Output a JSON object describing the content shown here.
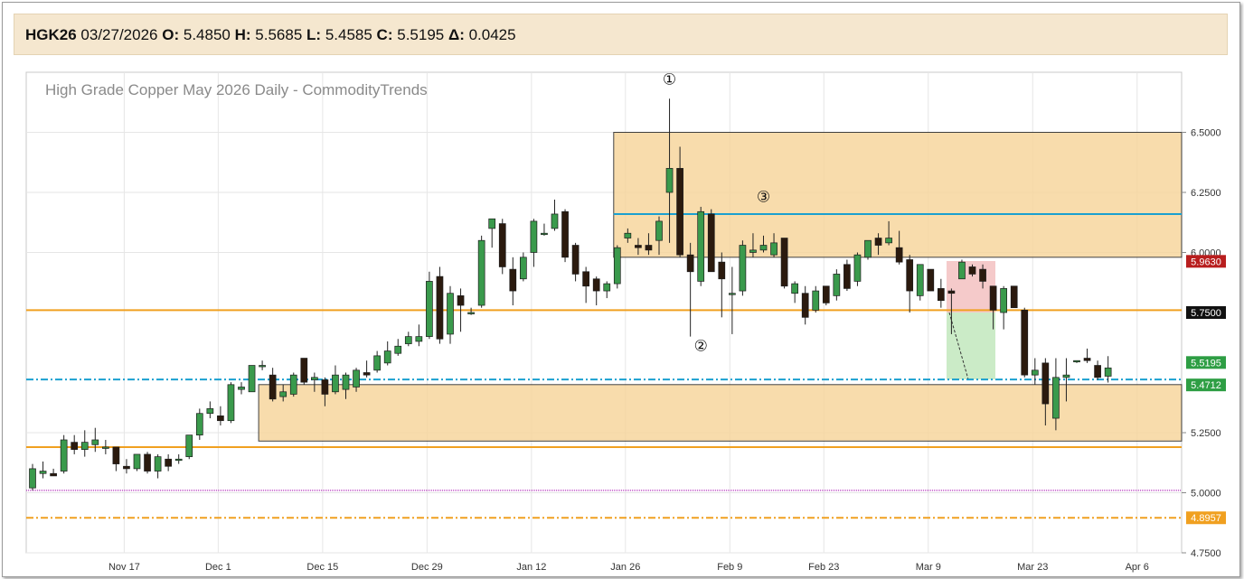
{
  "header": {
    "symbol": "HGK26",
    "date": "03/27/2026",
    "open_label": "O:",
    "open": "5.4850",
    "high_label": "H:",
    "high": "5.5685",
    "low_label": "L:",
    "low": "5.4585",
    "close_label": "C:",
    "close": "5.5195",
    "change_label": "Δ:",
    "change": "0.0425"
  },
  "chart_data": {
    "type": "candlestick",
    "title": "High Grade Copper May 2026 Daily - CommodityTrends",
    "ylim": [
      4.7,
      6.75
    ],
    "y_ticks": [
      "6.5000",
      "6.2500",
      "6.0000",
      "5.2500",
      "5.0000",
      "4.7500"
    ],
    "x_tick_labels": [
      "Nov 17",
      "Dec 1",
      "Dec 15",
      "Dec 29",
      "Jan 12",
      "Jan 26",
      "Feb 9",
      "Feb 23",
      "Mar 9",
      "Mar 23",
      "Apr 6"
    ],
    "grid": true,
    "colors": {
      "up": "#3a9a4c",
      "down": "#2b1a0e",
      "zone": "#f7d69e",
      "level": "#f0a020",
      "cyan": "#1aa0d0",
      "price_up": "#2e9e44"
    },
    "candles": [
      {
        "o": 5.02,
        "h": 5.12,
        "l": 5.01,
        "c": 5.1
      },
      {
        "o": 5.08,
        "h": 5.13,
        "l": 5.06,
        "c": 5.09
      },
      {
        "o": 5.08,
        "h": 5.1,
        "l": 5.07,
        "c": 5.07
      },
      {
        "o": 5.09,
        "h": 5.24,
        "l": 5.08,
        "c": 5.22
      },
      {
        "o": 5.21,
        "h": 5.24,
        "l": 5.16,
        "c": 5.18
      },
      {
        "o": 5.18,
        "h": 5.26,
        "l": 5.15,
        "c": 5.21
      },
      {
        "o": 5.2,
        "h": 5.27,
        "l": 5.17,
        "c": 5.22
      },
      {
        "o": 5.19,
        "h": 5.22,
        "l": 5.16,
        "c": 5.19
      },
      {
        "o": 5.19,
        "h": 5.19,
        "l": 5.09,
        "c": 5.12
      },
      {
        "o": 5.11,
        "h": 5.14,
        "l": 5.08,
        "c": 5.1
      },
      {
        "o": 5.1,
        "h": 5.16,
        "l": 5.09,
        "c": 5.16
      },
      {
        "o": 5.16,
        "h": 5.17,
        "l": 5.08,
        "c": 5.09
      },
      {
        "o": 5.09,
        "h": 5.16,
        "l": 5.06,
        "c": 5.15
      },
      {
        "o": 5.14,
        "h": 5.16,
        "l": 5.09,
        "c": 5.11
      },
      {
        "o": 5.14,
        "h": 5.16,
        "l": 5.12,
        "c": 5.14
      },
      {
        "o": 5.15,
        "h": 5.24,
        "l": 5.14,
        "c": 5.24
      },
      {
        "o": 5.24,
        "h": 5.35,
        "l": 5.22,
        "c": 5.33
      },
      {
        "o": 5.33,
        "h": 5.38,
        "l": 5.31,
        "c": 5.35
      },
      {
        "o": 5.32,
        "h": 5.36,
        "l": 5.28,
        "c": 5.3
      },
      {
        "o": 5.3,
        "h": 5.46,
        "l": 5.29,
        "c": 5.45
      },
      {
        "o": 5.43,
        "h": 5.46,
        "l": 5.41,
        "c": 5.44
      },
      {
        "o": 5.42,
        "h": 5.53,
        "l": 5.42,
        "c": 5.53
      },
      {
        "o": 5.53,
        "h": 5.55,
        "l": 5.51,
        "c": 5.53
      },
      {
        "o": 5.49,
        "h": 5.52,
        "l": 5.38,
        "c": 5.39
      },
      {
        "o": 5.4,
        "h": 5.45,
        "l": 5.38,
        "c": 5.42
      },
      {
        "o": 5.41,
        "h": 5.5,
        "l": 5.4,
        "c": 5.49
      },
      {
        "o": 5.56,
        "h": 5.56,
        "l": 5.45,
        "c": 5.46
      },
      {
        "o": 5.47,
        "h": 5.5,
        "l": 5.42,
        "c": 5.48
      },
      {
        "o": 5.47,
        "h": 5.48,
        "l": 5.36,
        "c": 5.41
      },
      {
        "o": 5.42,
        "h": 5.53,
        "l": 5.41,
        "c": 5.49
      },
      {
        "o": 5.43,
        "h": 5.5,
        "l": 5.39,
        "c": 5.49
      },
      {
        "o": 5.44,
        "h": 5.52,
        "l": 5.42,
        "c": 5.51
      },
      {
        "o": 5.5,
        "h": 5.55,
        "l": 5.48,
        "c": 5.49
      },
      {
        "o": 5.51,
        "h": 5.59,
        "l": 5.5,
        "c": 5.57
      },
      {
        "o": 5.54,
        "h": 5.63,
        "l": 5.53,
        "c": 5.59
      },
      {
        "o": 5.58,
        "h": 5.64,
        "l": 5.57,
        "c": 5.61
      },
      {
        "o": 5.62,
        "h": 5.67,
        "l": 5.61,
        "c": 5.65
      },
      {
        "o": 5.63,
        "h": 5.7,
        "l": 5.61,
        "c": 5.65
      },
      {
        "o": 5.65,
        "h": 5.92,
        "l": 5.64,
        "c": 5.88
      },
      {
        "o": 5.9,
        "h": 5.94,
        "l": 5.62,
        "c": 5.64
      },
      {
        "o": 5.66,
        "h": 5.86,
        "l": 5.62,
        "c": 5.83
      },
      {
        "o": 5.82,
        "h": 5.85,
        "l": 5.67,
        "c": 5.78
      },
      {
        "o": 5.75,
        "h": 5.77,
        "l": 5.74,
        "c": 5.75
      },
      {
        "o": 5.78,
        "h": 6.07,
        "l": 5.77,
        "c": 6.05
      },
      {
        "o": 6.1,
        "h": 6.14,
        "l": 6.02,
        "c": 6.14
      },
      {
        "o": 6.12,
        "h": 6.14,
        "l": 5.91,
        "c": 5.94
      },
      {
        "o": 5.93,
        "h": 5.98,
        "l": 5.78,
        "c": 5.84
      },
      {
        "o": 5.89,
        "h": 6.0,
        "l": 5.88,
        "c": 5.98
      },
      {
        "o": 6.0,
        "h": 6.14,
        "l": 5.94,
        "c": 6.13
      },
      {
        "o": 6.08,
        "h": 6.12,
        "l": 6.07,
        "c": 6.08
      },
      {
        "o": 6.1,
        "h": 6.22,
        "l": 6.09,
        "c": 6.16
      },
      {
        "o": 6.17,
        "h": 6.18,
        "l": 5.96,
        "c": 5.98
      },
      {
        "o": 6.03,
        "h": 6.04,
        "l": 5.88,
        "c": 5.91
      },
      {
        "o": 5.92,
        "h": 5.94,
        "l": 5.79,
        "c": 5.86
      },
      {
        "o": 5.89,
        "h": 5.9,
        "l": 5.78,
        "c": 5.84
      },
      {
        "o": 5.84,
        "h": 5.88,
        "l": 5.81,
        "c": 5.87
      },
      {
        "o": 5.87,
        "h": 6.03,
        "l": 5.85,
        "c": 6.02
      },
      {
        "o": 6.06,
        "h": 6.1,
        "l": 6.04,
        "c": 6.08
      },
      {
        "o": 6.03,
        "h": 6.06,
        "l": 5.99,
        "c": 6.02
      },
      {
        "o": 6.03,
        "h": 6.08,
        "l": 5.99,
        "c": 6.01
      },
      {
        "o": 6.05,
        "h": 6.15,
        "l": 5.99,
        "c": 6.13
      },
      {
        "o": 6.25,
        "h": 6.64,
        "l": 6.04,
        "c": 6.35
      },
      {
        "o": 6.35,
        "h": 6.44,
        "l": 5.98,
        "c": 5.99
      },
      {
        "o": 5.99,
        "h": 6.04,
        "l": 5.65,
        "c": 5.92
      },
      {
        "o": 5.88,
        "h": 6.19,
        "l": 5.86,
        "c": 6.17
      },
      {
        "o": 6.16,
        "h": 6.18,
        "l": 5.92,
        "c": 5.92
      },
      {
        "o": 5.96,
        "h": 6.0,
        "l": 5.73,
        "c": 5.89
      },
      {
        "o": 5.83,
        "h": 5.94,
        "l": 5.66,
        "c": 5.83
      },
      {
        "o": 5.84,
        "h": 6.05,
        "l": 5.82,
        "c": 6.03
      },
      {
        "o": 6.0,
        "h": 6.08,
        "l": 5.98,
        "c": 6.01
      },
      {
        "o": 6.01,
        "h": 6.07,
        "l": 6.0,
        "c": 6.03
      },
      {
        "o": 5.99,
        "h": 6.08,
        "l": 5.98,
        "c": 6.04
      },
      {
        "o": 6.06,
        "h": 6.06,
        "l": 5.85,
        "c": 5.86
      },
      {
        "o": 5.83,
        "h": 5.88,
        "l": 5.79,
        "c": 5.87
      },
      {
        "o": 5.83,
        "h": 5.86,
        "l": 5.7,
        "c": 5.73
      },
      {
        "o": 5.76,
        "h": 5.86,
        "l": 5.75,
        "c": 5.84
      },
      {
        "o": 5.86,
        "h": 5.86,
        "l": 5.78,
        "c": 5.79
      },
      {
        "o": 5.82,
        "h": 5.93,
        "l": 5.8,
        "c": 5.91
      },
      {
        "o": 5.95,
        "h": 5.97,
        "l": 5.84,
        "c": 5.85
      },
      {
        "o": 5.88,
        "h": 6.0,
        "l": 5.86,
        "c": 5.99
      },
      {
        "o": 5.98,
        "h": 6.05,
        "l": 5.97,
        "c": 6.05
      },
      {
        "o": 6.06,
        "h": 6.08,
        "l": 5.99,
        "c": 6.03
      },
      {
        "o": 6.04,
        "h": 6.13,
        "l": 6.03,
        "c": 6.06
      },
      {
        "o": 6.02,
        "h": 6.09,
        "l": 5.95,
        "c": 5.96
      },
      {
        "o": 5.97,
        "h": 5.99,
        "l": 5.75,
        "c": 5.84
      },
      {
        "o": 5.82,
        "h": 5.95,
        "l": 5.8,
        "c": 5.95
      },
      {
        "o": 5.93,
        "h": 5.93,
        "l": 5.84,
        "c": 5.84
      },
      {
        "o": 5.85,
        "h": 5.89,
        "l": 5.77,
        "c": 5.8
      },
      {
        "o": 5.84,
        "h": 5.85,
        "l": 5.66,
        "c": 5.83
      },
      {
        "o": 5.89,
        "h": 5.97,
        "l": 5.89,
        "c": 5.96
      },
      {
        "o": 5.94,
        "h": 5.95,
        "l": 5.9,
        "c": 5.91
      },
      {
        "o": 5.93,
        "h": 5.95,
        "l": 5.85,
        "c": 5.88
      },
      {
        "o": 5.86,
        "h": 5.86,
        "l": 5.68,
        "c": 5.76
      },
      {
        "o": 5.75,
        "h": 5.86,
        "l": 5.68,
        "c": 5.85
      },
      {
        "o": 5.86,
        "h": 5.86,
        "l": 5.77,
        "c": 5.77
      },
      {
        "o": 5.76,
        "h": 5.77,
        "l": 5.48,
        "c": 5.49
      },
      {
        "o": 5.49,
        "h": 5.56,
        "l": 5.45,
        "c": 5.51
      },
      {
        "o": 5.54,
        "h": 5.56,
        "l": 5.28,
        "c": 5.37
      },
      {
        "o": 5.31,
        "h": 5.56,
        "l": 5.26,
        "c": 5.48
      },
      {
        "o": 5.48,
        "h": 5.56,
        "l": 5.38,
        "c": 5.49
      },
      {
        "o": 5.55,
        "h": 5.55,
        "l": 5.54,
        "c": 5.55
      },
      {
        "o": 5.56,
        "h": 5.6,
        "l": 5.54,
        "c": 5.55
      },
      {
        "o": 5.53,
        "h": 5.55,
        "l": 5.47,
        "c": 5.48
      },
      {
        "o": 5.485,
        "h": 5.5685,
        "l": 5.4585,
        "c": 5.5195
      }
    ],
    "price_labels": [
      {
        "value": "5.9630",
        "price": 5.963,
        "kind": "down"
      },
      {
        "value": "5.7500",
        "price": 5.75,
        "kind": "black"
      },
      {
        "value": "5.5195",
        "price": 5.5195,
        "kind": "up"
      },
      {
        "value": "5.4712",
        "price": 5.4712,
        "kind": "up"
      },
      {
        "value": "4.8957",
        "price": 4.8957,
        "kind": "orange"
      }
    ],
    "horizontal_lines": [
      {
        "price": 5.76,
        "color": "#f0a020",
        "style": "solid"
      },
      {
        "price": 5.19,
        "color": "#f0a020",
        "style": "solid"
      },
      {
        "price": 6.16,
        "color": "#1aa0d0",
        "style": "solid",
        "from_bar": 56
      },
      {
        "price": 5.4712,
        "color": "#1aa0d0",
        "style": "dashdot"
      },
      {
        "price": 5.01,
        "color": "#c050c8",
        "style": "dotted"
      },
      {
        "price": 4.8957,
        "color": "#f0a020",
        "style": "dashdot"
      }
    ],
    "zones": [
      {
        "from_bar": 56,
        "top": 6.5,
        "bottom": 5.98
      },
      {
        "from_bar": 22,
        "top": 5.45,
        "bottom": 5.215
      }
    ],
    "annotations": [
      {
        "label": "①",
        "bar": 61,
        "price": 6.7
      },
      {
        "label": "②",
        "bar": 64,
        "price": 5.59
      },
      {
        "label": "③",
        "bar": 70,
        "price": 6.21
      }
    ]
  }
}
